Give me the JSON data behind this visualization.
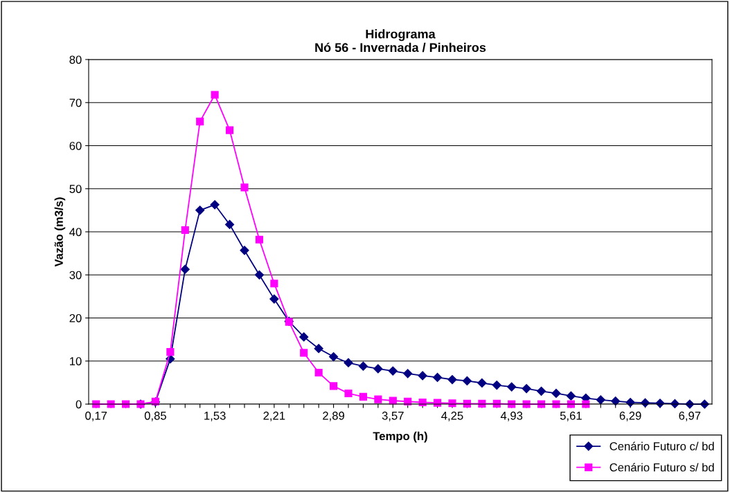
{
  "chart_data": {
    "type": "line",
    "title": "Hidrograma\nNó 56 - Invernada / Pinheiros",
    "xlabel": "Tempo (h)",
    "ylabel": "Vazão (m3/s)",
    "categories": [
      "0,17",
      null,
      null,
      null,
      "0,85",
      null,
      null,
      null,
      "1,53",
      null,
      null,
      null,
      "2,21",
      null,
      null,
      null,
      "2,89",
      null,
      null,
      null,
      "3,57",
      null,
      null,
      null,
      "4,25",
      null,
      null,
      null,
      "4,93",
      null,
      null,
      null,
      "5,61",
      null,
      null,
      null,
      "6,29",
      null,
      null,
      null,
      "6,97",
      null
    ],
    "ylim": [
      0,
      80
    ],
    "yticks": [
      0,
      10,
      20,
      30,
      40,
      50,
      60,
      70,
      80
    ],
    "grid": "y",
    "legend": "bottom right",
    "series": [
      {
        "name": "Cenário Futuro c/ bd",
        "color": "#000080",
        "marker": "diamond",
        "values": [
          null,
          null,
          null,
          0,
          0.5,
          10.5,
          31.3,
          45,
          46.3,
          41.7,
          35.7,
          30,
          24.4,
          19.2,
          15.6,
          12.9,
          11,
          9.6,
          8.8,
          8.2,
          7.7,
          7.1,
          6.6,
          6.2,
          5.7,
          5.4,
          4.9,
          4.4,
          4.0,
          3.6,
          3.0,
          2.5,
          1.9,
          1.4,
          1.0,
          0.7,
          0.4,
          0.3,
          0.2,
          0.1,
          0,
          0
        ]
      },
      {
        "name": "Cenário Futuro s/ bd",
        "color": "#ff00ff",
        "marker": "square",
        "values": [
          0,
          0,
          0,
          0,
          0.6,
          12.1,
          40.4,
          65.6,
          71.8,
          63.6,
          50.3,
          38.2,
          28.0,
          19.1,
          11.9,
          7.3,
          4.2,
          2.5,
          1.7,
          1.1,
          0.8,
          0.6,
          0.4,
          0.3,
          0.2,
          0.1,
          0.1,
          0.1,
          0,
          0,
          0,
          0,
          0,
          0,
          null,
          null,
          null,
          null,
          null,
          null,
          null,
          null
        ]
      }
    ]
  }
}
